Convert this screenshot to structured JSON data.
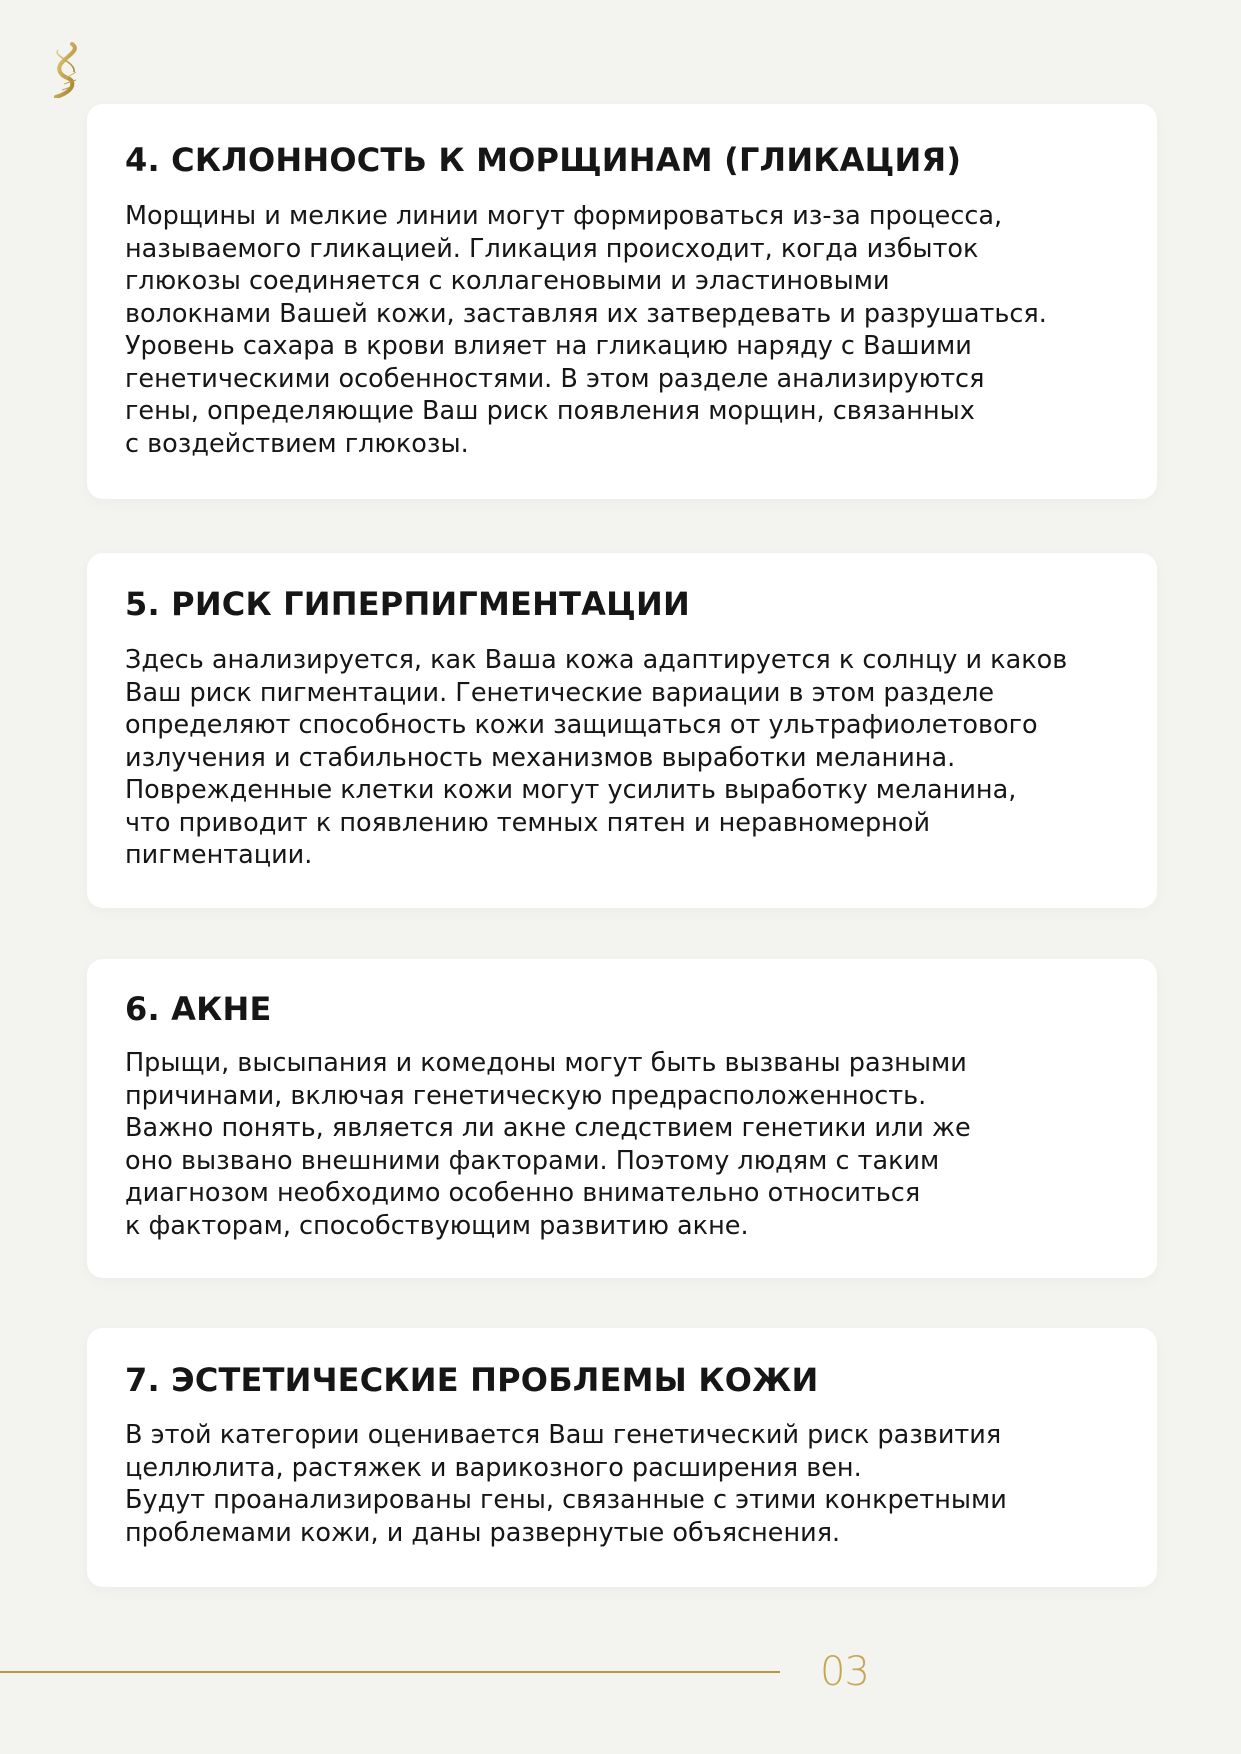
{
  "brand": {
    "logo": "dna-helix-logo",
    "accent_color": "#b8973e"
  },
  "sections": [
    {
      "title": "4. СКЛОННОСТЬ К МОРЩИНАМ (ГЛИКАЦИЯ)",
      "lines": [
        "Морщины и мелкие линии могут формироваться из-за процесса,",
        "называемого гликацией. Гликация происходит, когда избыток",
        "глюкозы соединяется с коллагеновыми и эластиновыми",
        "волокнами Вашей кожи, заставляя их затвердевать и разрушаться.",
        "Уровень сахара в крови влияет на гликацию наряду с Вашими",
        "генетическими особенностями. В этом разделе анализируются",
        "гены, определяющие Ваш риск появления морщин, связанных",
        "с воздействием глюкозы."
      ]
    },
    {
      "title": "5. РИСК ГИПЕРПИГМЕНТАЦИИ",
      "lines": [
        "Здесь анализируется, как Ваша кожа адаптируется к солнцу и каков",
        "Ваш риск пигментации. Генетические вариации в этом разделе",
        "определяют способность кожи защищаться от ультрафиолетового",
        "излучения и стабильность механизмов выработки меланина.",
        "Поврежденные клетки кожи могут усилить выработку меланина,",
        "что приводит к появлению темных пятен и неравномерной",
        "пигментации."
      ]
    },
    {
      "title": "6. АКНЕ",
      "lines": [
        "Прыщи, высыпания и комедоны могут быть вызваны разными",
        "причинами, включая генетическую предрасположенность.",
        "Важно понять, является ли акне следствием генетики или же",
        "оно вызвано внешними факторами. Поэтому людям с таким",
        "диагнозом необходимо особенно внимательно относиться",
        "к факторам, способствующим развитию акне."
      ]
    },
    {
      "title": "7. ЭСТЕТИЧЕСКИЕ ПРОБЛЕМЫ КОЖИ",
      "lines": [
        "В этой категории оценивается Ваш генетический риск развития",
        "целлюлита, растяжек и варикозного расширения вен.",
        "Будут проанализированы гены, связанные с этими конкретными",
        "проблемами кожи, и даны развернутые объяснения."
      ]
    }
  ],
  "footer": {
    "page_number": "03"
  }
}
